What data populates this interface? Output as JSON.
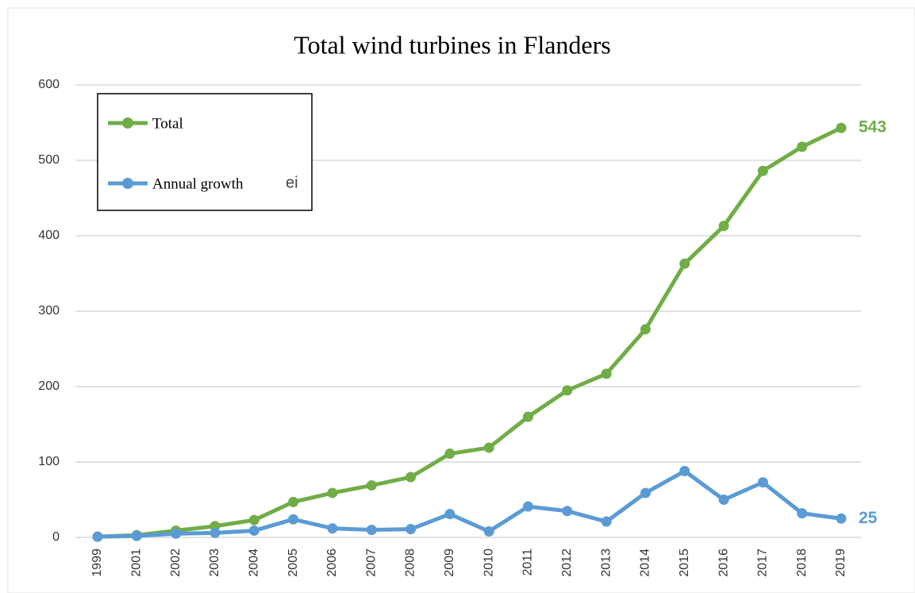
{
  "chart_data": {
    "type": "line",
    "title": "Total wind turbines in Flanders",
    "categories": [
      "1999",
      "2001",
      "2002",
      "2003",
      "2004",
      "2005",
      "2006",
      "2007",
      "2008",
      "2009",
      "2010",
      "2011",
      "2012",
      "2013",
      "2014",
      "2015",
      "2016",
      "2017",
      "2018",
      "2019"
    ],
    "series": [
      {
        "name": "Total",
        "color": "#70ad47",
        "values": [
          1,
          3,
          9,
          15,
          23,
          47,
          59,
          69,
          80,
          111,
          119,
          160,
          195,
          217,
          276,
          363,
          413,
          486,
          518,
          543
        ]
      },
      {
        "name": "Annual growth",
        "color": "#5b9bd5",
        "values": [
          1,
          2,
          5,
          6,
          9,
          24,
          12,
          10,
          11,
          31,
          8,
          41,
          35,
          21,
          59,
          88,
          50,
          73,
          32,
          25
        ]
      }
    ],
    "legend_fragment": "ei",
    "ylim": [
      0,
      600
    ],
    "yticks": [
      0,
      100,
      200,
      300,
      400,
      500,
      600
    ],
    "grid": true,
    "legend": "upper left"
  }
}
